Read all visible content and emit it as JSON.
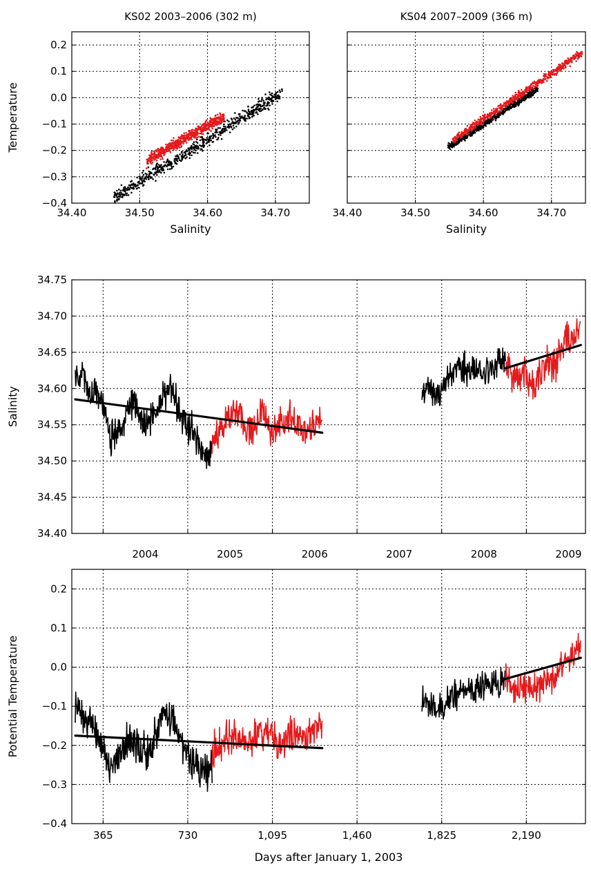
{
  "chart_data": [
    {
      "type": "scatter",
      "title": "KS02 2003–2006 (302 m)",
      "xlabel": "Salinity",
      "ylabel": "Temperature",
      "xlim": [
        34.4,
        34.75
      ],
      "ylim": [
        -0.4,
        0.25
      ],
      "xticks": [
        34.4,
        34.5,
        34.6,
        34.7
      ],
      "xtick_labels": [
        "34.40",
        "34.50",
        "34.60",
        "34.70"
      ],
      "yticks": [
        -0.4,
        -0.3,
        -0.2,
        -0.1,
        0.0,
        0.1,
        0.2
      ],
      "ytick_labels": [
        "−0.4",
        "−0.3",
        "−0.2",
        "−0.1",
        "0.0",
        "0.1",
        "0.2"
      ],
      "grid": true,
      "series": [
        {
          "color": "#000000",
          "trend": [
            [
              34.46,
              -0.385
            ],
            [
              34.71,
              0.02
            ]
          ],
          "spread": 0.025
        },
        {
          "color": "#e41a1c",
          "trend": [
            [
              34.51,
              -0.24
            ],
            [
              34.625,
              -0.07
            ]
          ],
          "spread": 0.02
        }
      ]
    },
    {
      "type": "scatter",
      "title": "KS04 2007–2009 (366 m)",
      "xlabel": "Salinity",
      "ylabel": "",
      "xlim": [
        34.4,
        34.75
      ],
      "ylim": [
        -0.4,
        0.25
      ],
      "xticks": [
        34.4,
        34.5,
        34.6,
        34.7
      ],
      "xtick_labels": [
        "34.40",
        "34.50",
        "34.60",
        "34.70"
      ],
      "yticks": [
        -0.4,
        -0.3,
        -0.2,
        -0.1,
        0.0,
        0.1,
        0.2
      ],
      "grid": true,
      "series": [
        {
          "color": "#000000",
          "trend": [
            [
              34.548,
              -0.19
            ],
            [
              34.68,
              0.035
            ]
          ],
          "spread": 0.012
        },
        {
          "color": "#e41a1c",
          "trend": [
            [
              34.555,
              -0.16
            ],
            [
              34.745,
              0.17
            ]
          ],
          "spread": 0.015
        }
      ]
    },
    {
      "type": "line",
      "xlabel": "",
      "ylabel": "Salinity",
      "xlim": [
        230,
        2445
      ],
      "ylim": [
        34.4,
        34.75
      ],
      "year_ticks": [
        365,
        730,
        1095,
        1460,
        1825,
        2190,
        2445
      ],
      "year_labels": [
        "2004",
        "2005",
        "2006",
        "2007",
        "2008",
        "2009"
      ],
      "year_label_positions": [
        547,
        912,
        1277,
        1642,
        2007,
        2372
      ],
      "yticks": [
        34.4,
        34.45,
        34.5,
        34.55,
        34.6,
        34.65,
        34.7,
        34.75
      ],
      "ytick_labels": [
        "34.40",
        "34.45",
        "34.50",
        "34.55",
        "34.60",
        "34.65",
        "34.70",
        "34.75"
      ],
      "grid": true,
      "series": [
        {
          "color": "#000000",
          "x": [
            245,
            275,
            305,
            335,
            365,
            395,
            425,
            455,
            485,
            515,
            545,
            575,
            605,
            635,
            665,
            695,
            725,
            755,
            785,
            815,
            835
          ],
          "y": [
            34.62,
            34.62,
            34.6,
            34.59,
            34.58,
            34.53,
            34.55,
            34.55,
            34.58,
            34.57,
            34.55,
            34.56,
            34.57,
            34.6,
            34.6,
            34.56,
            34.55,
            34.54,
            34.52,
            34.5,
            34.52
          ],
          "noise": 0.03
        },
        {
          "color": "#e41a1c",
          "x": [
            835,
            865,
            895,
            925,
            955,
            985,
            1015,
            1045,
            1075,
            1105,
            1135,
            1165,
            1195,
            1225,
            1255,
            1285,
            1310
          ],
          "y": [
            34.53,
            34.54,
            34.55,
            34.57,
            34.56,
            34.54,
            34.55,
            34.56,
            34.55,
            34.54,
            34.55,
            34.56,
            34.55,
            34.54,
            34.55,
            34.55,
            34.56
          ],
          "noise": 0.028
        },
        {
          "color": "#000000",
          "x": [
            1740,
            1770,
            1800,
            1830,
            1860,
            1890,
            1920,
            1950,
            1980,
            2010,
            2040,
            2070,
            2100
          ],
          "y": [
            34.6,
            34.6,
            34.59,
            34.6,
            34.62,
            34.63,
            34.63,
            34.62,
            34.63,
            34.62,
            34.63,
            34.64,
            34.64
          ],
          "noise": 0.025
        },
        {
          "color": "#e41a1c",
          "x": [
            2100,
            2130,
            2160,
            2190,
            2220,
            2250,
            2280,
            2310,
            2340,
            2370,
            2400,
            2425
          ],
          "y": [
            34.64,
            34.62,
            34.61,
            34.62,
            34.6,
            34.62,
            34.64,
            34.63,
            34.66,
            34.67,
            34.68,
            34.69
          ],
          "noise": 0.03
        }
      ],
      "trends": [
        {
          "x": [
            245,
            1310
          ],
          "y": [
            34.585,
            34.539
          ]
        },
        {
          "x": [
            2100,
            2425
          ],
          "y": [
            34.628,
            34.66
          ]
        }
      ]
    },
    {
      "type": "line",
      "xlabel": "Days after January 1, 2003",
      "ylabel": "Potential Temperature",
      "xlim": [
        230,
        2445
      ],
      "ylim": [
        -0.4,
        0.25
      ],
      "xticks": [
        365,
        730,
        1095,
        1460,
        1825,
        2190
      ],
      "xtick_labels": [
        "365",
        "730",
        "1,095",
        "1,460",
        "1,825",
        "2,190"
      ],
      "yticks": [
        -0.4,
        -0.3,
        -0.2,
        -0.1,
        0.0,
        0.1,
        0.2
      ],
      "ytick_labels": [
        "−0.4",
        "−0.3",
        "−0.2",
        "−0.1",
        "0.0",
        "0.1",
        "0.2"
      ],
      "grid": true,
      "series": [
        {
          "color": "#000000",
          "x": [
            245,
            275,
            305,
            335,
            365,
            395,
            425,
            455,
            485,
            515,
            545,
            575,
            605,
            635,
            665,
            695,
            725,
            755,
            785,
            815,
            835
          ],
          "y": [
            -0.1,
            -0.12,
            -0.15,
            -0.17,
            -0.2,
            -0.25,
            -0.23,
            -0.2,
            -0.19,
            -0.2,
            -0.21,
            -0.2,
            -0.14,
            -0.12,
            -0.13,
            -0.18,
            -0.22,
            -0.24,
            -0.27,
            -0.28,
            -0.25
          ],
          "noise": 0.06
        },
        {
          "color": "#e41a1c",
          "x": [
            835,
            865,
            895,
            925,
            955,
            985,
            1015,
            1045,
            1075,
            1105,
            1135,
            1165,
            1195,
            1225,
            1255,
            1285,
            1310
          ],
          "y": [
            -0.22,
            -0.2,
            -0.18,
            -0.17,
            -0.18,
            -0.2,
            -0.18,
            -0.16,
            -0.17,
            -0.18,
            -0.2,
            -0.17,
            -0.16,
            -0.18,
            -0.17,
            -0.16,
            -0.16
          ],
          "noise": 0.06
        },
        {
          "color": "#000000",
          "x": [
            1740,
            1770,
            1800,
            1830,
            1860,
            1890,
            1920,
            1950,
            1980,
            2010,
            2040,
            2070,
            2100
          ],
          "y": [
            -0.09,
            -0.1,
            -0.11,
            -0.1,
            -0.08,
            -0.07,
            -0.06,
            -0.06,
            -0.05,
            -0.05,
            -0.04,
            -0.04,
            -0.03
          ],
          "noise": 0.045
        },
        {
          "color": "#e41a1c",
          "x": [
            2100,
            2130,
            2160,
            2190,
            2220,
            2250,
            2280,
            2310,
            2340,
            2370,
            2400,
            2425
          ],
          "y": [
            -0.03,
            -0.05,
            -0.07,
            -0.05,
            -0.06,
            -0.04,
            -0.03,
            -0.03,
            0.0,
            0.02,
            0.05,
            0.06
          ],
          "noise": 0.05
        }
      ],
      "trends": [
        {
          "x": [
            245,
            1310
          ],
          "y": [
            -0.175,
            -0.207
          ]
        },
        {
          "x": [
            2100,
            2425
          ],
          "y": [
            -0.03,
            0.024
          ]
        }
      ]
    }
  ]
}
